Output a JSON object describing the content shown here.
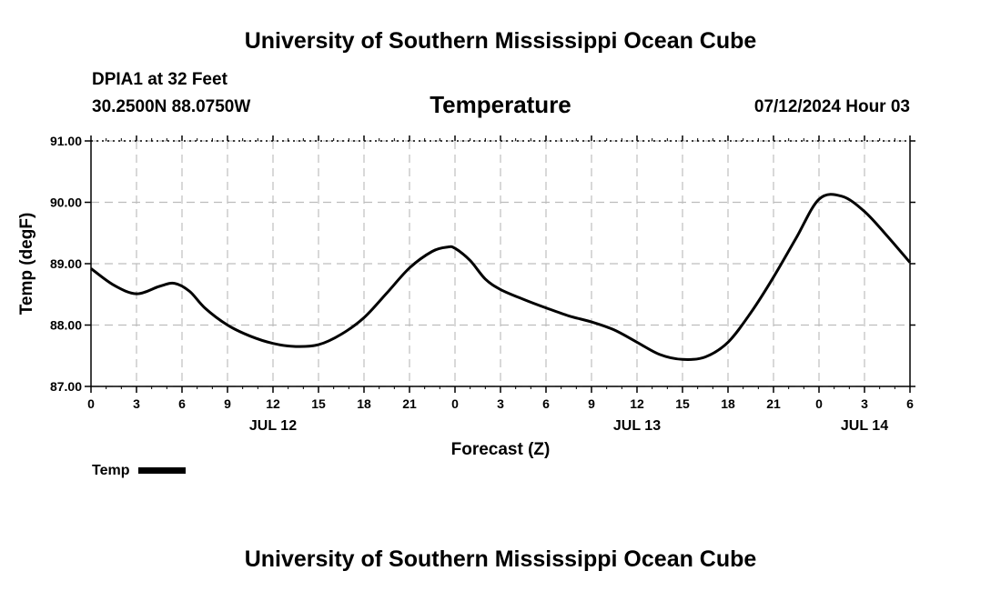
{
  "header": {
    "organization": "University of Southern Mississippi Ocean Cube",
    "station": "DPIA1 at 32 Feet",
    "coordinates": "30.2500N  88.0750W",
    "datetime": "07/12/2024 Hour 03"
  },
  "footer": {
    "organization": "University of Southern Mississippi Ocean Cube"
  },
  "chart_data": {
    "type": "line",
    "title": "Temperature",
    "xlabel": "Forecast (Z)",
    "ylabel": "Temp (degF)",
    "ylim": [
      87.0,
      91.0
    ],
    "xlim": [
      0,
      54
    ],
    "y_ticks": [
      "87.00",
      "88.00",
      "89.00",
      "90.00",
      "91.00"
    ],
    "x_ticks": [
      "0",
      "3",
      "6",
      "9",
      "12",
      "15",
      "18",
      "21",
      "0",
      "3",
      "6",
      "9",
      "12",
      "15",
      "18",
      "21",
      "0",
      "3",
      "6"
    ],
    "date_labels": [
      {
        "label": "JUL 12",
        "hour": 12
      },
      {
        "label": "JUL 13",
        "hour": 36
      },
      {
        "label": "JUL 14",
        "hour": 51
      }
    ],
    "grid": true,
    "legend": {
      "position": "bottom-left",
      "entries": [
        "Temp"
      ]
    },
    "series": [
      {
        "name": "Temp",
        "color": "#000000",
        "x": [
          0,
          1.5,
          3,
          4.5,
          5.5,
          6.5,
          7.5,
          9,
          10.5,
          12,
          13.5,
          15,
          16.5,
          18,
          19.5,
          21,
          22.5,
          23.5,
          24,
          25,
          26,
          27,
          28.5,
          30,
          31.5,
          33,
          34.5,
          36,
          37.5,
          39,
          40.5,
          42,
          43.5,
          45,
          46.5,
          48,
          49.5,
          51,
          52.5,
          54
        ],
        "values": [
          88.92,
          88.65,
          88.51,
          88.63,
          88.68,
          88.55,
          88.28,
          88.0,
          87.82,
          87.7,
          87.65,
          87.68,
          87.85,
          88.12,
          88.52,
          88.93,
          89.2,
          89.27,
          89.25,
          89.05,
          88.75,
          88.58,
          88.42,
          88.28,
          88.15,
          88.05,
          87.92,
          87.72,
          87.52,
          87.44,
          87.48,
          87.72,
          88.2,
          88.78,
          89.42,
          90.05,
          90.1,
          89.85,
          89.45,
          89.02
        ]
      }
    ]
  }
}
